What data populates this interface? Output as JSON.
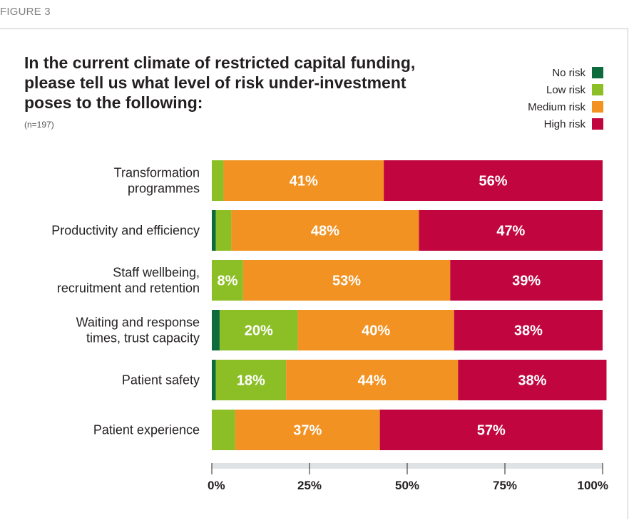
{
  "figure_label": "FIGURE 3",
  "colors": {
    "no_risk": "#0d6b3e",
    "low_risk": "#8cbf26",
    "medium_risk": "#f29222",
    "high_risk": "#c1063f",
    "axis": "#dfe3e5"
  },
  "chart_data": {
    "type": "bar",
    "orientation": "horizontal",
    "stacked": true,
    "title": "In the current climate of restricted capital funding, please tell us what level of risk under-investment poses to the following:",
    "subtitle": "(n=197)",
    "categories": [
      [
        "Transformation",
        "programmes"
      ],
      [
        "Productivity and efficiency"
      ],
      [
        "Staff wellbeing,",
        "recruitment and retention"
      ],
      [
        "Waiting and response",
        "times, trust capacity"
      ],
      [
        "Patient safety"
      ],
      [
        "Patient experience"
      ]
    ],
    "series": [
      {
        "name": "No risk",
        "color": "#0d6b3e",
        "values": [
          0,
          1,
          0,
          2,
          1,
          0
        ],
        "labels": [
          "",
          "",
          "",
          "",
          "",
          ""
        ]
      },
      {
        "name": "Low risk",
        "color": "#8cbf26",
        "values": [
          3,
          4,
          8,
          20,
          18,
          6
        ],
        "labels": [
          "",
          "",
          "8%",
          "20%",
          "18%",
          ""
        ]
      },
      {
        "name": "Medium risk",
        "color": "#f29222",
        "values": [
          41,
          48,
          53,
          40,
          44,
          37
        ],
        "labels": [
          "41%",
          "48%",
          "53%",
          "40%",
          "44%",
          "37%"
        ]
      },
      {
        "name": "High risk",
        "color": "#c1063f",
        "values": [
          56,
          47,
          39,
          38,
          38,
          57
        ],
        "labels": [
          "56%",
          "47%",
          "39%",
          "38%",
          "38%",
          "57%"
        ]
      }
    ],
    "xlim": [
      0,
      100
    ],
    "xticks": [
      0,
      25,
      50,
      75,
      100
    ],
    "xtick_labels": [
      "0%",
      "25%",
      "50%",
      "75%",
      "100%"
    ],
    "legend_position": "top-right"
  }
}
